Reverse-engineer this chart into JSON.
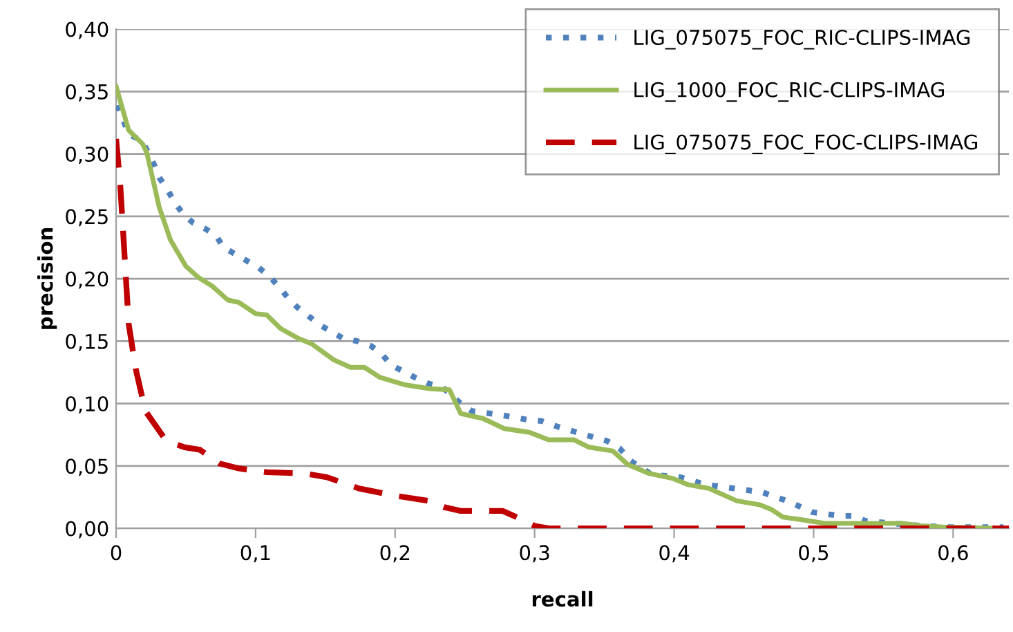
{
  "chart_data": {
    "type": "line",
    "xlabel": "recall",
    "ylabel": "precision",
    "xlim": [
      0,
      0.64
    ],
    "ylim": [
      0,
      0.4
    ],
    "xticks": [
      0,
      {
        "value": 0.1,
        "label": "0,1"
      },
      {
        "value": 0.2,
        "label": "0,2"
      },
      {
        "value": 0.3,
        "label": "0,3"
      },
      {
        "value": 0.4,
        "label": "0,4"
      },
      {
        "value": 0.5,
        "label": "0,5"
      },
      {
        "value": 0.6,
        "label": "0,6"
      }
    ],
    "yticks": [
      {
        "value": 0,
        "label": "0,00"
      },
      {
        "value": 0.05,
        "label": "0,05"
      },
      {
        "value": 0.1,
        "label": "0,10"
      },
      {
        "value": 0.15,
        "label": "0,15"
      },
      {
        "value": 0.2,
        "label": "0,20"
      },
      {
        "value": 0.25,
        "label": "0,25"
      },
      {
        "value": 0.3,
        "label": "0,30"
      },
      {
        "value": 0.35,
        "label": "0,35"
      },
      {
        "value": 0.4,
        "label": "0,40"
      }
    ],
    "grid": "y",
    "legend": "top right",
    "marker": "none",
    "series": [
      {
        "name": "LIG_075075_FOC_RIC-CLIPS-IMAG",
        "color": "#4f81bd",
        "line_style": "dotted",
        "x": [
          0.001,
          0.009,
          0.019,
          0.027,
          0.031,
          0.037,
          0.042,
          0.048,
          0.055,
          0.064,
          0.072,
          0.077,
          0.085,
          0.102,
          0.11,
          0.117,
          0.123,
          0.13,
          0.146,
          0.163,
          0.173,
          0.183,
          0.191,
          0.197,
          0.214,
          0.224,
          0.234,
          0.247,
          0.255,
          0.275,
          0.295,
          0.305,
          0.315,
          0.333,
          0.352,
          0.361,
          0.369,
          0.384,
          0.404,
          0.423,
          0.443,
          0.463,
          0.473,
          0.481,
          0.499,
          0.519,
          0.529,
          0.537,
          0.557,
          0.577,
          0.597,
          0.636
        ],
        "values": [
          0.339,
          0.316,
          0.31,
          0.292,
          0.281,
          0.271,
          0.261,
          0.252,
          0.245,
          0.24,
          0.234,
          0.225,
          0.22,
          0.209,
          0.202,
          0.193,
          0.185,
          0.177,
          0.163,
          0.152,
          0.15,
          0.146,
          0.139,
          0.131,
          0.121,
          0.116,
          0.113,
          0.1,
          0.094,
          0.091,
          0.087,
          0.086,
          0.082,
          0.076,
          0.07,
          0.064,
          0.054,
          0.043,
          0.041,
          0.035,
          0.032,
          0.029,
          0.025,
          0.022,
          0.013,
          0.01,
          0.01,
          0.006,
          0.004,
          0.002,
          0.001,
          0.001
        ]
      },
      {
        "name": "LIG_1000_FOC_RIC-CLIPS-IMAG",
        "color": "#9bbb59",
        "line_style": "solid",
        "x": [
          0,
          0.009,
          0.019,
          0.022,
          0.031,
          0.039,
          0.05,
          0.059,
          0.069,
          0.08,
          0.088,
          0.1,
          0.108,
          0.118,
          0.131,
          0.14,
          0.156,
          0.168,
          0.178,
          0.189,
          0.207,
          0.224,
          0.239,
          0.247,
          0.263,
          0.278,
          0.296,
          0.31,
          0.328,
          0.339,
          0.356,
          0.367,
          0.382,
          0.399,
          0.41,
          0.425,
          0.445,
          0.461,
          0.47,
          0.478,
          0.491,
          0.508,
          0.564,
          0.577,
          0.593,
          0.636
        ],
        "values": [
          0.354,
          0.319,
          0.308,
          0.301,
          0.257,
          0.231,
          0.21,
          0.201,
          0.194,
          0.183,
          0.181,
          0.172,
          0.171,
          0.16,
          0.152,
          0.148,
          0.135,
          0.129,
          0.129,
          0.121,
          0.115,
          0.112,
          0.111,
          0.092,
          0.088,
          0.08,
          0.077,
          0.071,
          0.071,
          0.065,
          0.062,
          0.051,
          0.044,
          0.04,
          0.035,
          0.032,
          0.022,
          0.019,
          0.015,
          0.009,
          0.007,
          0.004,
          0.004,
          0.002,
          0.001,
          0.0
        ]
      },
      {
        "name": "LIG_075075_FOC_FOC-CLIPS-IMAG",
        "color": "#c00000",
        "line_style": "dashed",
        "x": [
          0,
          0.003,
          0.006,
          0.009,
          0.014,
          0.021,
          0.036,
          0.049,
          0.06,
          0.074,
          0.088,
          0.108,
          0.135,
          0.151,
          0.174,
          0.201,
          0.224,
          0.235,
          0.247,
          0.277,
          0.285,
          0.3,
          0.31,
          0.64
        ],
        "values": [
          0.312,
          0.275,
          0.22,
          0.164,
          0.128,
          0.094,
          0.07,
          0.065,
          0.063,
          0.052,
          0.048,
          0.045,
          0.044,
          0.041,
          0.032,
          0.026,
          0.022,
          0.017,
          0.014,
          0.014,
          0.01,
          0.002,
          0.0,
          0.0
        ]
      }
    ]
  }
}
